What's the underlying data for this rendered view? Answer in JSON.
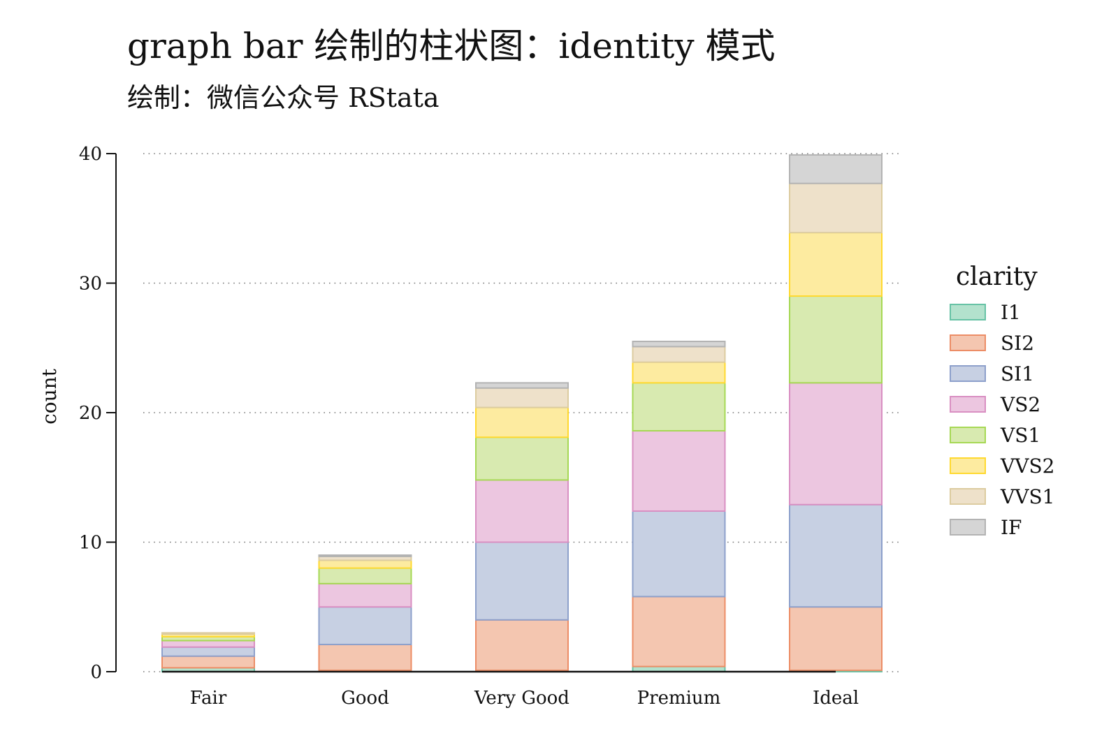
{
  "chart_data": {
    "type": "bar",
    "stacked": true,
    "title": "graph bar 绘制的柱状图：identity 模式",
    "subtitle": "绘制：微信公众号 RStata",
    "xlabel": "",
    "ylabel": "count",
    "ylim": [
      0,
      40
    ],
    "yticks": [
      0,
      10,
      20,
      30,
      40
    ],
    "grid": "horizontal-dotted",
    "legend_title": "clarity",
    "legend_position": "right",
    "categories": [
      "Fair",
      "Good",
      "Very Good",
      "Premium",
      "Ideal"
    ],
    "series": [
      {
        "name": "I1",
        "fill": "#b3e2cd",
        "stroke": "#66c2a5",
        "values": [
          0.3,
          0.1,
          0.1,
          0.4,
          0.1
        ]
      },
      {
        "name": "SI2",
        "fill": "#f4c6b0",
        "stroke": "#ec8d66",
        "values": [
          0.9,
          2.0,
          3.9,
          5.4,
          4.9
        ]
      },
      {
        "name": "SI1",
        "fill": "#c7d0e3",
        "stroke": "#8da0cb",
        "values": [
          0.7,
          2.9,
          6.0,
          6.6,
          7.9
        ]
      },
      {
        "name": "VS2",
        "fill": "#ecc6e0",
        "stroke": "#d98fc2",
        "values": [
          0.5,
          1.8,
          4.8,
          6.2,
          9.4
        ]
      },
      {
        "name": "VS1",
        "fill": "#d8eab0",
        "stroke": "#a6d854",
        "values": [
          0.3,
          1.2,
          3.3,
          3.7,
          6.7
        ]
      },
      {
        "name": "VVS2",
        "fill": "#fdeba0",
        "stroke": "#ffd92f",
        "values": [
          0.2,
          0.6,
          2.3,
          1.6,
          4.9
        ]
      },
      {
        "name": "VVS1",
        "fill": "#eee1ca",
        "stroke": "#dccca0",
        "values": [
          0.1,
          0.3,
          1.5,
          1.2,
          3.8
        ]
      },
      {
        "name": "IF",
        "fill": "#d5d5d5",
        "stroke": "#b3b3b3",
        "values": [
          0.0,
          0.1,
          0.4,
          0.4,
          2.2
        ]
      }
    ]
  }
}
